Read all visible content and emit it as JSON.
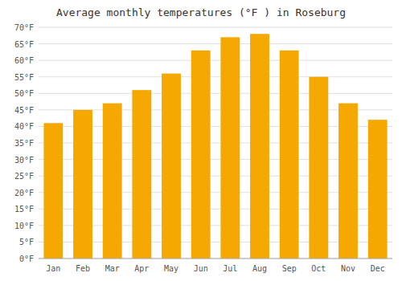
{
  "chart_data": {
    "type": "bar",
    "title": "Average monthly temperatures (°F ) in Roseburg",
    "categories": [
      "Jan",
      "Feb",
      "Mar",
      "Apr",
      "May",
      "Jun",
      "Jul",
      "Aug",
      "Sep",
      "Oct",
      "Nov",
      "Dec"
    ],
    "values": [
      41,
      45,
      47,
      51,
      56,
      63,
      67,
      68,
      63,
      55,
      47,
      42
    ],
    "color": "#F5A800",
    "ylim": [
      0,
      70
    ],
    "yticks": [
      {
        "value": 0,
        "label": "0°F"
      },
      {
        "value": 5,
        "label": "5°F"
      },
      {
        "value": 10,
        "label": "10°F"
      },
      {
        "value": 15,
        "label": "15°F"
      },
      {
        "value": 20,
        "label": "20°F"
      },
      {
        "value": 25,
        "label": "25°F"
      },
      {
        "value": 30,
        "label": "30°F"
      },
      {
        "value": 35,
        "label": "35°F"
      },
      {
        "value": 40,
        "label": "40°F"
      },
      {
        "value": 45,
        "label": "45°F"
      },
      {
        "value": 50,
        "label": "50°F"
      },
      {
        "value": 55,
        "label": "55°F"
      },
      {
        "value": 60,
        "label": "60°F"
      },
      {
        "value": 65,
        "label": "65°F"
      },
      {
        "value": 70,
        "label": "70°F"
      }
    ],
    "grid": true
  }
}
